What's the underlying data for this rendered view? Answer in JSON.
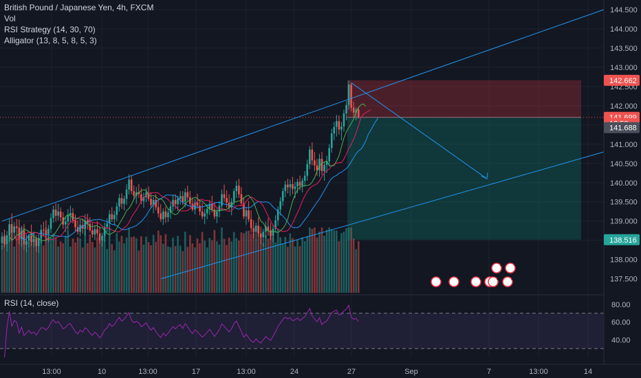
{
  "legend": {
    "title": "British Pound / Japanese Yen, 4h, FXCM",
    "vol": "Vol",
    "rsi_strategy": "RSI Strategy (14, 30, 70)",
    "alligator": "Alligator (13, 8, 5, 8, 5, 3)"
  },
  "rsi_legend": "RSI (14, close)",
  "colors": {
    "background": "#131722",
    "up": "#26a69a",
    "down": "#ef5350",
    "channel": "#2196f3",
    "rsi": "#9c27b0",
    "jaw": "#2196f3",
    "teeth": "#e91e63",
    "lips": "#4caf50"
  },
  "price_axis": {
    "ticks": [
      "144.500",
      "144.000",
      "143.500",
      "143.000",
      "142.500",
      "142.000",
      "141.000",
      "140.500",
      "140.000",
      "139.500",
      "139.000",
      "138.000",
      "137.500"
    ],
    "tags": [
      {
        "label": "142.662",
        "value": 142.662,
        "color": "#ef5350"
      },
      {
        "label": "141.699",
        "value": 141.699,
        "color": "#ef5350"
      },
      {
        "label": "13:52",
        "value": 141.54,
        "color": "#ef5350"
      },
      {
        "label": "141.688",
        "value": 141.43,
        "color": "#4a4e5a"
      },
      {
        "label": "138.516",
        "value": 138.516,
        "color": "#26a69a"
      }
    ]
  },
  "rsi_axis": {
    "ticks": [
      "80.00",
      "60.00",
      "40.00"
    ]
  },
  "time_axis": {
    "labels": [
      "13:00",
      "10",
      "13:00",
      "17",
      "13:00",
      "24",
      "27",
      "Sep",
      "7",
      "13:00",
      "14"
    ]
  },
  "event_markers": {
    "counts": [
      "2",
      "4",
      "3",
      "3",
      "2",
      "2",
      "2",
      "1"
    ]
  },
  "chart_data": {
    "type": "candlestick",
    "title": "British Pound / Japanese Yen, 4h, FXCM",
    "symbol": "GBPJPY",
    "timeframe": "4h",
    "ylim": [
      137.1,
      144.75
    ],
    "x_labels": [
      "13:00",
      "10",
      "13:00",
      "17",
      "13:00",
      "24",
      "27",
      "Sep",
      "7",
      "13:00",
      "14"
    ],
    "last_price": 141.699,
    "position": {
      "direction": "short",
      "entry": 141.699,
      "stop": 142.662,
      "target": 138.516
    },
    "channel": {
      "upper": [
        [
          0,
          139.0
        ],
        [
          158,
          142.67
        ],
        [
          252,
          144.5
        ]
      ],
      "lower": [
        [
          65,
          137.5
        ],
        [
          252,
          140.8
        ]
      ]
    },
    "ohlc": [
      [
        138.42,
        138.71,
        138.26,
        138.6
      ],
      [
        138.6,
        138.78,
        138.32,
        138.4
      ],
      [
        138.4,
        138.74,
        138.21,
        138.63
      ],
      [
        138.63,
        139.06,
        138.46,
        138.92
      ],
      [
        138.92,
        139.2,
        138.51,
        138.7
      ],
      [
        138.7,
        138.97,
        138.55,
        138.86
      ],
      [
        138.86,
        139.05,
        138.62,
        138.82
      ],
      [
        138.82,
        139.04,
        138.39,
        138.53
      ],
      [
        138.53,
        138.88,
        138.33,
        138.74
      ],
      [
        138.74,
        138.93,
        138.26,
        138.39
      ],
      [
        138.39,
        138.65,
        138.19,
        138.49
      ],
      [
        138.49,
        138.67,
        138.32,
        138.62
      ],
      [
        138.62,
        138.91,
        138.35,
        138.46
      ],
      [
        138.46,
        138.73,
        138.32,
        138.53
      ],
      [
        138.53,
        138.64,
        138.21,
        138.35
      ],
      [
        138.35,
        138.66,
        138.17,
        138.56
      ],
      [
        138.56,
        138.91,
        138.41,
        138.77
      ],
      [
        138.77,
        138.98,
        138.61,
        138.76
      ],
      [
        138.76,
        139.02,
        138.47,
        138.66
      ],
      [
        138.66,
        138.9,
        138.45,
        138.8
      ],
      [
        138.8,
        139.2,
        138.69,
        139.08
      ],
      [
        139.08,
        139.4,
        138.96,
        139.3
      ],
      [
        139.3,
        139.46,
        138.99,
        139.14
      ],
      [
        139.14,
        139.45,
        139.02,
        139.25
      ],
      [
        139.25,
        139.36,
        138.99,
        139.1
      ],
      [
        139.1,
        139.23,
        138.8,
        138.91
      ],
      [
        138.91,
        139.11,
        138.71,
        138.99
      ],
      [
        138.99,
        139.31,
        138.76,
        139.15
      ],
      [
        139.15,
        139.4,
        138.98,
        139.21
      ],
      [
        139.21,
        139.34,
        138.94,
        139.02
      ],
      [
        139.02,
        139.17,
        138.74,
        138.84
      ],
      [
        138.84,
        139.02,
        138.65,
        138.72
      ],
      [
        138.72,
        139.04,
        138.6,
        138.9
      ],
      [
        138.9,
        139.07,
        138.67,
        138.8
      ],
      [
        138.8,
        139.18,
        138.62,
        139.02
      ],
      [
        139.02,
        139.19,
        138.78,
        138.93
      ],
      [
        138.93,
        139.1,
        138.7,
        138.76
      ],
      [
        138.76,
        138.95,
        138.57,
        138.65
      ],
      [
        138.65,
        138.9,
        138.51,
        138.79
      ],
      [
        138.79,
        139.0,
        138.6,
        138.68
      ],
      [
        138.68,
        138.86,
        138.41,
        138.5
      ],
      [
        138.5,
        138.7,
        138.33,
        138.62
      ],
      [
        138.62,
        138.96,
        138.46,
        138.85
      ],
      [
        138.85,
        139.07,
        138.71,
        138.94
      ],
      [
        138.94,
        139.29,
        138.78,
        139.18
      ],
      [
        139.18,
        139.36,
        138.98,
        139.05
      ],
      [
        139.05,
        139.27,
        138.89,
        139.16
      ],
      [
        139.16,
        139.48,
        139.0,
        139.38
      ],
      [
        139.38,
        139.7,
        139.25,
        139.6
      ],
      [
        139.6,
        139.72,
        139.32,
        139.45
      ],
      [
        139.45,
        139.66,
        139.28,
        139.58
      ],
      [
        139.58,
        139.96,
        139.42,
        139.82
      ],
      [
        139.82,
        140.22,
        139.69,
        140.08
      ],
      [
        140.08,
        140.2,
        139.7,
        139.78
      ],
      [
        139.78,
        139.93,
        139.55,
        139.66
      ],
      [
        139.66,
        139.89,
        139.45,
        139.75
      ],
      [
        139.75,
        139.96,
        139.6,
        139.7
      ],
      [
        139.7,
        139.86,
        139.44,
        139.52
      ],
      [
        139.52,
        139.74,
        139.35,
        139.62
      ],
      [
        139.62,
        139.86,
        139.49,
        139.74
      ],
      [
        139.74,
        139.9,
        139.52,
        139.58
      ],
      [
        139.58,
        139.75,
        139.33,
        139.42
      ],
      [
        139.42,
        139.63,
        139.2,
        139.55
      ],
      [
        139.55,
        139.7,
        139.28,
        139.36
      ],
      [
        139.36,
        139.54,
        139.1,
        139.2
      ],
      [
        139.2,
        139.44,
        138.98,
        139.05
      ],
      [
        139.05,
        139.33,
        138.9,
        139.25
      ],
      [
        139.25,
        139.38,
        138.95,
        139.1
      ],
      [
        139.1,
        139.33,
        138.98,
        139.22
      ],
      [
        139.22,
        139.48,
        139.06,
        139.38
      ],
      [
        139.38,
        139.67,
        139.25,
        139.55
      ],
      [
        139.55,
        139.7,
        139.31,
        139.44
      ],
      [
        139.44,
        139.66,
        139.26,
        139.58
      ],
      [
        139.58,
        139.78,
        139.43,
        139.65
      ],
      [
        139.65,
        139.78,
        139.42,
        139.5
      ],
      [
        139.5,
        139.85,
        139.36,
        139.75
      ],
      [
        139.75,
        139.92,
        139.55,
        139.62
      ],
      [
        139.62,
        139.78,
        139.38,
        139.45
      ],
      [
        139.45,
        139.62,
        139.25,
        139.3
      ],
      [
        139.3,
        139.58,
        139.18,
        139.48
      ],
      [
        139.48,
        139.71,
        139.32,
        139.4
      ],
      [
        139.4,
        139.56,
        139.15,
        139.25
      ],
      [
        139.25,
        139.48,
        139.05,
        139.12
      ],
      [
        139.12,
        139.32,
        138.92,
        139.2
      ],
      [
        139.2,
        139.44,
        139.05,
        139.32
      ],
      [
        139.32,
        139.55,
        139.16,
        139.45
      ],
      [
        139.45,
        139.66,
        139.22,
        139.3
      ],
      [
        139.3,
        139.5,
        139.05,
        139.12
      ],
      [
        139.12,
        139.33,
        138.95,
        139.25
      ],
      [
        139.25,
        139.52,
        139.1,
        139.4
      ],
      [
        139.4,
        139.82,
        139.28,
        139.7
      ],
      [
        139.7,
        139.95,
        139.5,
        139.6
      ],
      [
        139.6,
        139.8,
        139.35,
        139.48
      ],
      [
        139.48,
        139.7,
        139.28,
        139.35
      ],
      [
        139.35,
        139.6,
        139.15,
        139.5
      ],
      [
        139.5,
        139.85,
        139.4,
        139.78
      ],
      [
        139.78,
        140.05,
        139.6,
        139.92
      ],
      [
        139.92,
        140.1,
        139.6,
        139.7
      ],
      [
        139.7,
        139.88,
        139.4,
        139.46
      ],
      [
        139.46,
        139.6,
        139.05,
        139.12
      ],
      [
        139.12,
        139.35,
        138.9,
        139.28
      ],
      [
        139.28,
        139.52,
        138.98,
        139.05
      ],
      [
        139.05,
        139.28,
        138.7,
        138.82
      ],
      [
        138.82,
        139.02,
        138.55,
        138.72
      ],
      [
        138.72,
        138.96,
        138.5,
        138.88
      ],
      [
        138.88,
        139.1,
        138.6,
        138.68
      ],
      [
        138.68,
        138.85,
        138.4,
        138.58
      ],
      [
        138.58,
        138.8,
        138.35,
        138.72
      ],
      [
        138.72,
        138.98,
        138.55,
        138.86
      ],
      [
        138.86,
        139.08,
        138.62,
        138.75
      ],
      [
        138.75,
        138.95,
        138.5,
        138.62
      ],
      [
        138.62,
        138.9,
        138.45,
        138.8
      ],
      [
        138.8,
        139.15,
        138.7,
        139.02
      ],
      [
        139.02,
        139.38,
        138.88,
        139.3
      ],
      [
        139.3,
        139.62,
        139.15,
        139.52
      ],
      [
        139.52,
        139.86,
        139.4,
        139.78
      ],
      [
        139.78,
        140.05,
        139.62,
        139.95
      ],
      [
        139.95,
        140.1,
        139.72,
        139.88
      ],
      [
        139.88,
        140.08,
        139.65,
        139.96
      ],
      [
        139.96,
        140.15,
        139.7,
        139.84
      ],
      [
        139.84,
        140.02,
        139.6,
        139.9
      ],
      [
        139.9,
        140.1,
        139.72,
        140.02
      ],
      [
        140.02,
        140.18,
        139.8,
        139.92
      ],
      [
        139.92,
        140.12,
        139.75,
        140.05
      ],
      [
        140.05,
        140.3,
        139.9,
        140.18
      ],
      [
        140.18,
        140.6,
        140.05,
        140.48
      ],
      [
        140.48,
        140.95,
        140.35,
        140.86
      ],
      [
        140.86,
        141.05,
        140.45,
        140.58
      ],
      [
        140.58,
        140.8,
        140.3,
        140.45
      ],
      [
        140.45,
        140.62,
        140.18,
        140.32
      ],
      [
        140.32,
        140.75,
        140.15,
        140.62
      ],
      [
        140.62,
        140.8,
        140.2,
        140.3
      ],
      [
        140.3,
        140.55,
        140.05,
        140.46
      ],
      [
        140.46,
        140.7,
        140.25,
        140.55
      ],
      [
        140.55,
        141.0,
        140.42,
        140.9
      ],
      [
        140.9,
        141.4,
        140.78,
        141.28
      ],
      [
        141.28,
        141.58,
        141.1,
        141.45
      ],
      [
        141.45,
        141.76,
        141.2,
        141.6
      ],
      [
        141.6,
        141.75,
        141.25,
        141.38
      ],
      [
        141.38,
        141.58,
        141.1,
        141.46
      ],
      [
        141.46,
        141.9,
        141.32,
        141.8
      ],
      [
        141.8,
        142.12,
        141.62,
        142.02
      ],
      [
        142.02,
        142.66,
        141.9,
        142.55
      ],
      [
        142.55,
        142.6,
        141.85,
        141.95
      ],
      [
        141.95,
        142.1,
        141.7,
        141.82
      ],
      [
        141.82,
        141.96,
        141.62,
        141.9
      ],
      [
        141.9,
        141.98,
        141.66,
        141.7
      ]
    ],
    "series": [
      {
        "name": "Vol",
        "values": []
      },
      {
        "name": "RSI (14, close)",
        "ylim": [
          20,
          90
        ],
        "levels": [
          70,
          30
        ]
      }
    ]
  }
}
